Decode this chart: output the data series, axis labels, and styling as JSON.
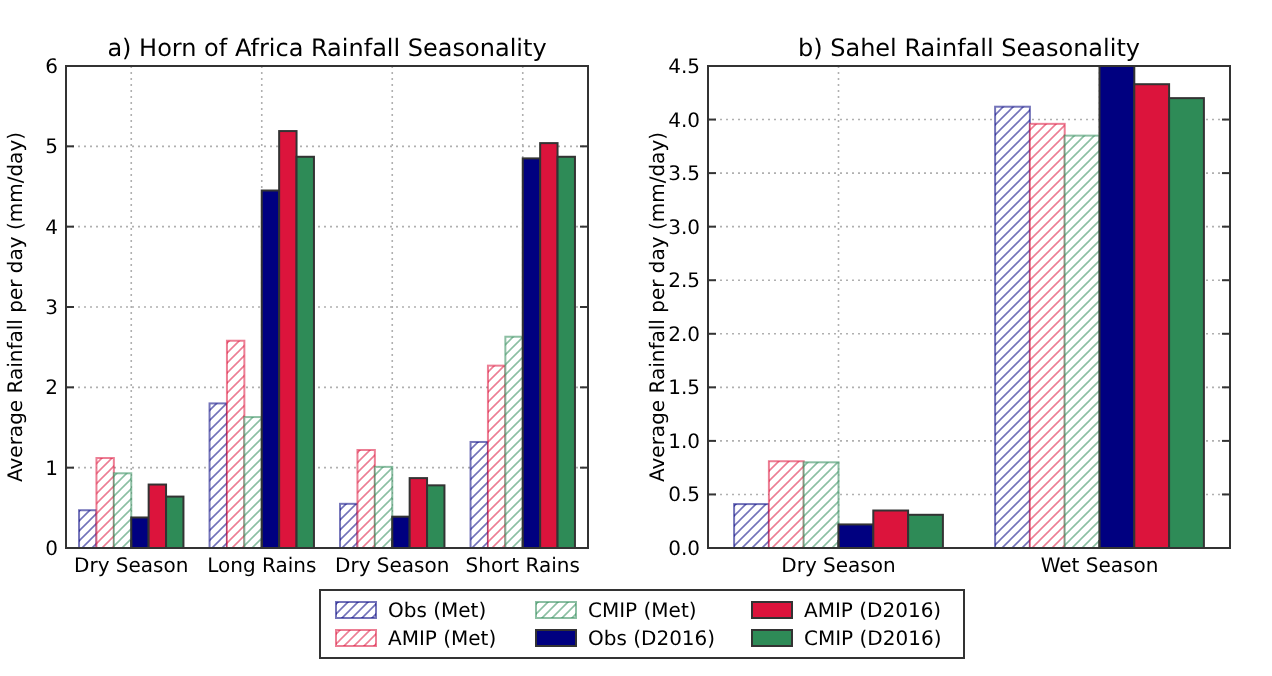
{
  "chart_data": [
    {
      "type": "bar",
      "title": "a) Horn of Africa Rainfall Seasonality",
      "ylabel": "Average Rainfall per day (mm/day)",
      "categories": [
        "Dry Season",
        "Long Rains",
        "Dry Season",
        "Short Rains"
      ],
      "ylim": [
        0,
        6
      ],
      "yticks": [
        0,
        1,
        2,
        3,
        4,
        5,
        6
      ],
      "grid": true,
      "legend": "bottom",
      "series": [
        {
          "name": "Obs (Met)",
          "color": "#000080",
          "values": [
            0.47,
            1.8,
            0.55,
            1.32
          ]
        },
        {
          "name": "AMIP (Met)",
          "color": "#dc143c",
          "values": [
            1.12,
            2.58,
            1.22,
            2.27
          ]
        },
        {
          "name": "CMIP (Met)",
          "color": "#2e8b57",
          "values": [
            0.93,
            1.63,
            1.01,
            2.63
          ]
        },
        {
          "name": "Obs (D2016)",
          "color": "#000080",
          "values": [
            0.38,
            4.45,
            0.39,
            4.85
          ]
        },
        {
          "name": "AMIP (D2016)",
          "color": "#dc143c",
          "values": [
            0.79,
            5.19,
            0.87,
            5.04
          ]
        },
        {
          "name": "CMIP (D2016)",
          "color": "#2e8b57",
          "values": [
            0.64,
            4.87,
            0.78,
            4.87
          ]
        }
      ]
    },
    {
      "type": "bar",
      "title": "b) Sahel Rainfall Seasonality",
      "ylabel": "Average Rainfall per day (mm/day)",
      "categories": [
        "Dry Season",
        "Wet Season"
      ],
      "ylim": [
        0,
        4.5
      ],
      "yticks": [
        {
          "value": 0,
          "label": "0.0"
        },
        {
          "value": 0.5,
          "label": "0.5"
        },
        {
          "value": 1,
          "label": "1.0"
        },
        {
          "value": 1.5,
          "label": "1.5"
        },
        {
          "value": 2,
          "label": "2.0"
        },
        {
          "value": 2.5,
          "label": "2.5"
        },
        {
          "value": 3,
          "label": "3.0"
        },
        {
          "value": 3.5,
          "label": "3.5"
        },
        {
          "value": 4,
          "label": "4.0"
        },
        {
          "value": 4.5,
          "label": "4.5"
        }
      ],
      "grid": true,
      "series": [
        {
          "color": "#000080",
          "values": [
            0.41,
            4.12
          ]
        },
        {
          "color": "#dc143c",
          "values": [
            0.81,
            3.96
          ]
        },
        {
          "color": "#2e8b57",
          "values": [
            0.8,
            3.85
          ]
        },
        {
          "color": "#000080",
          "values": [
            0.22,
            4.5
          ]
        },
        {
          "color": "#dc143c",
          "values": [
            0.35,
            4.33
          ]
        },
        {
          "color": "#2e8b57",
          "values": [
            0.31,
            4.2
          ]
        }
      ]
    }
  ]
}
